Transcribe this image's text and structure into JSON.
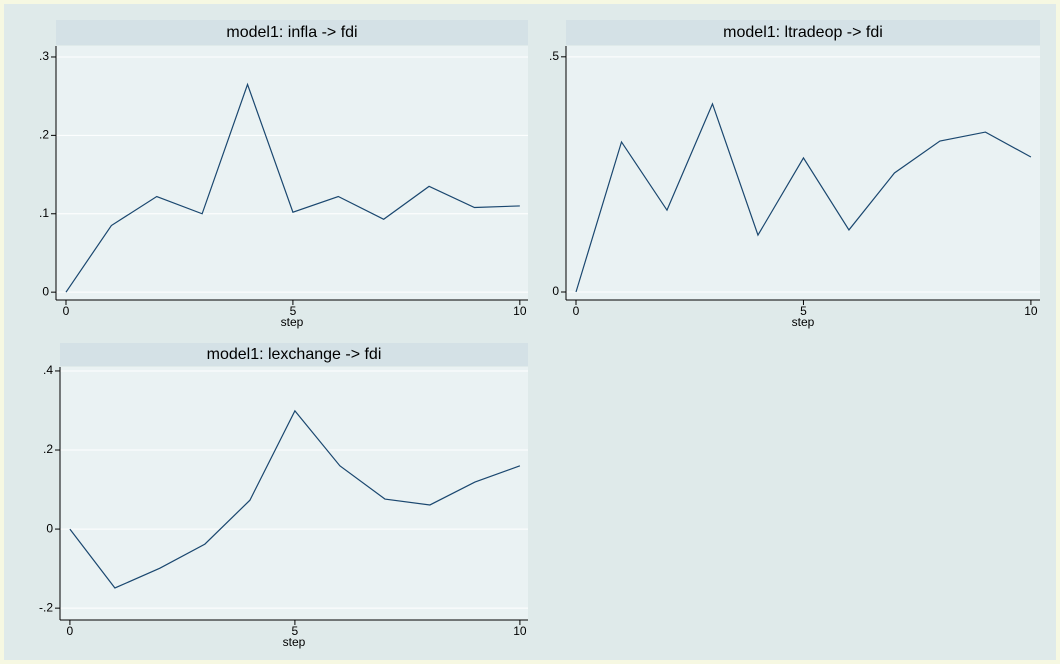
{
  "chart_data": [
    {
      "type": "line",
      "title": "model1: infla -> fdi",
      "xlabel": "step",
      "x": [
        0,
        1,
        2,
        3,
        4,
        5,
        6,
        7,
        8,
        9,
        10
      ],
      "series": [
        {
          "color": "#1a476f",
          "values": [
            0,
            0.085,
            0.122,
            0.1,
            0.265,
            0.102,
            0.122,
            0.093,
            0.135,
            0.108,
            0.11
          ]
        }
      ],
      "xlim": [
        -0.22,
        10.18
      ],
      "ylim": [
        -0.01,
        0.314
      ],
      "xticks": [
        0,
        5,
        10
      ],
      "yticks": [
        0,
        {
          "value": 0.1,
          "label": ".1"
        },
        {
          "value": 0.2,
          "label": ".2"
        },
        {
          "value": 0.3,
          "label": ".3"
        }
      ],
      "grid": true
    },
    {
      "type": "line",
      "title": "model1: ltradeop -> fdi",
      "xlabel": "step",
      "x": [
        0,
        1,
        2,
        3,
        4,
        5,
        6,
        7,
        8,
        9,
        10
      ],
      "series": [
        {
          "color": "#1a476f",
          "values": [
            0,
            0.319,
            0.174,
            0.4,
            0.121,
            0.285,
            0.132,
            0.253,
            0.321,
            0.34,
            0.287
          ]
        }
      ],
      "xlim": [
        -0.22,
        10.2
      ],
      "ylim": [
        -0.017,
        0.523
      ],
      "xticks": [
        0,
        5,
        10
      ],
      "yticks": [
        0,
        {
          "value": 0.5,
          "label": ".5"
        }
      ],
      "grid": true
    },
    {
      "type": "line",
      "title": "model1: lexchange -> fdi",
      "xlabel": "step",
      "x": [
        0,
        1,
        2,
        3,
        4,
        5,
        6,
        7,
        8,
        9,
        10
      ],
      "series": [
        {
          "color": "#1a476f",
          "values": [
            0,
            -0.149,
            -0.099,
            -0.038,
            0.073,
            0.299,
            0.16,
            0.076,
            0.061,
            0.119,
            0.16
          ]
        }
      ],
      "xlim": [
        -0.22,
        10.18
      ],
      "ylim": [
        -0.23,
        0.41
      ],
      "xticks": [
        0,
        5,
        10
      ],
      "yticks": [
        {
          "value": -0.2,
          "label": "-.2"
        },
        0,
        {
          "value": 0.2,
          "label": ".2"
        },
        {
          "value": 0.4,
          "label": ".4"
        }
      ],
      "grid": true
    }
  ]
}
